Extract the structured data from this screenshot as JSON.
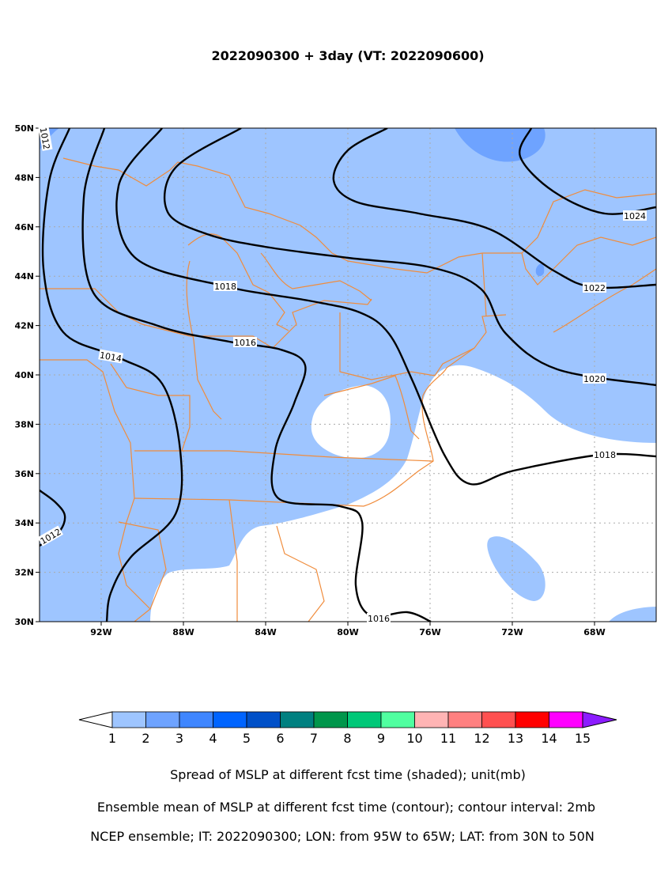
{
  "map": {
    "title": "2022090300 + 3day (VT: 2022090600)",
    "xlim": [
      -95,
      -65
    ],
    "ylim": [
      30,
      50
    ],
    "xticks": [
      {
        "value": -92,
        "label": "92W"
      },
      {
        "value": -88,
        "label": "88W"
      },
      {
        "value": -84,
        "label": "84W"
      },
      {
        "value": -80,
        "label": "80W"
      },
      {
        "value": -76,
        "label": "76W"
      },
      {
        "value": -72,
        "label": "72W"
      },
      {
        "value": -68,
        "label": "68W"
      }
    ],
    "yticks": [
      {
        "value": 30,
        "label": "30N"
      },
      {
        "value": 32,
        "label": "32N"
      },
      {
        "value": 34,
        "label": "34N"
      },
      {
        "value": 36,
        "label": "36N"
      },
      {
        "value": 38,
        "label": "38N"
      },
      {
        "value": 40,
        "label": "40N"
      },
      {
        "value": 42,
        "label": "42N"
      },
      {
        "value": 44,
        "label": "44N"
      },
      {
        "value": 46,
        "label": "46N"
      },
      {
        "value": 48,
        "label": "48N"
      },
      {
        "value": 50,
        "label": "50N"
      }
    ],
    "grid": true,
    "contour_labels": [
      "1012",
      "1012",
      "1014",
      "1016",
      "1016",
      "1018",
      "1018",
      "1020",
      "1022",
      "1024"
    ],
    "colorbar": {
      "levels": [
        "1",
        "2",
        "3",
        "4",
        "5",
        "6",
        "7",
        "8",
        "9",
        "10",
        "11",
        "12",
        "13",
        "14",
        "15"
      ],
      "colors": [
        "#9ec5ff",
        "#6ea3ff",
        "#3f86ff",
        "#0064ff",
        "#0050c8",
        "#008080",
        "#00964b",
        "#00c878",
        "#50ffa0",
        "#ffb4b4",
        "#ff8080",
        "#ff5050",
        "#ff0000",
        "#ff00ff"
      ],
      "under_color": "#ffffff",
      "over_color": "#8c1cff"
    },
    "captions": [
      "Spread of MSLP at different fcst time (shaded); unit(mb)",
      "Ensemble mean of MSLP at different fcst time (contour); contour interval: 2mb",
      "NCEP ensemble; IT: 2022090300; LON: from 95W to 65W; LAT: from 30N to 50N"
    ]
  }
}
